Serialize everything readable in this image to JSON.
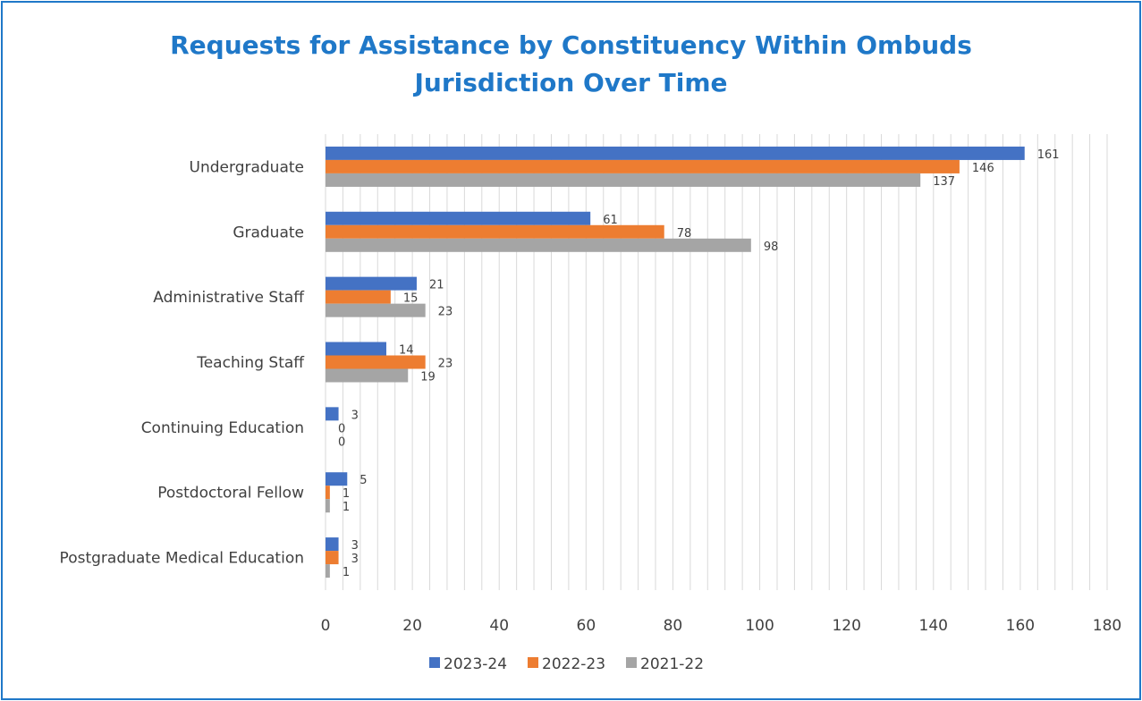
{
  "chart_data": {
    "type": "bar",
    "orientation": "horizontal",
    "title": "Requests for Assistance by Constituency Within Ombuds Jurisdiction Over Time",
    "title_lines": [
      "Requests for Assistance by Constituency Within Ombuds",
      "Jurisdiction Over Time"
    ],
    "categories": [
      "Undergraduate",
      "Graduate",
      "Administrative Staff",
      "Teaching Staff",
      "Continuing Education",
      "Postdoctoral Fellow",
      "Postgraduate Medical Education"
    ],
    "series": [
      {
        "name": "2023-24",
        "color": "#4472c4",
        "values": [
          161,
          61,
          21,
          14,
          3,
          5,
          3
        ]
      },
      {
        "name": "2022-23",
        "color": "#ed7d31",
        "values": [
          146,
          78,
          15,
          23,
          0,
          1,
          3
        ]
      },
      {
        "name": "2021-22",
        "color": "#a5a5a5",
        "values": [
          137,
          98,
          23,
          19,
          0,
          1,
          1
        ]
      }
    ],
    "xlim": [
      0,
      180
    ],
    "xticks": [
      0,
      20,
      40,
      60,
      80,
      100,
      120,
      140,
      160,
      180
    ],
    "grid": true,
    "legend_position": "bottom",
    "xlabel": "",
    "ylabel": ""
  },
  "colors": {
    "title": "#1f78c8",
    "frame": "#1f78c8",
    "grid": "#d9d9d9",
    "text": "#404040"
  }
}
